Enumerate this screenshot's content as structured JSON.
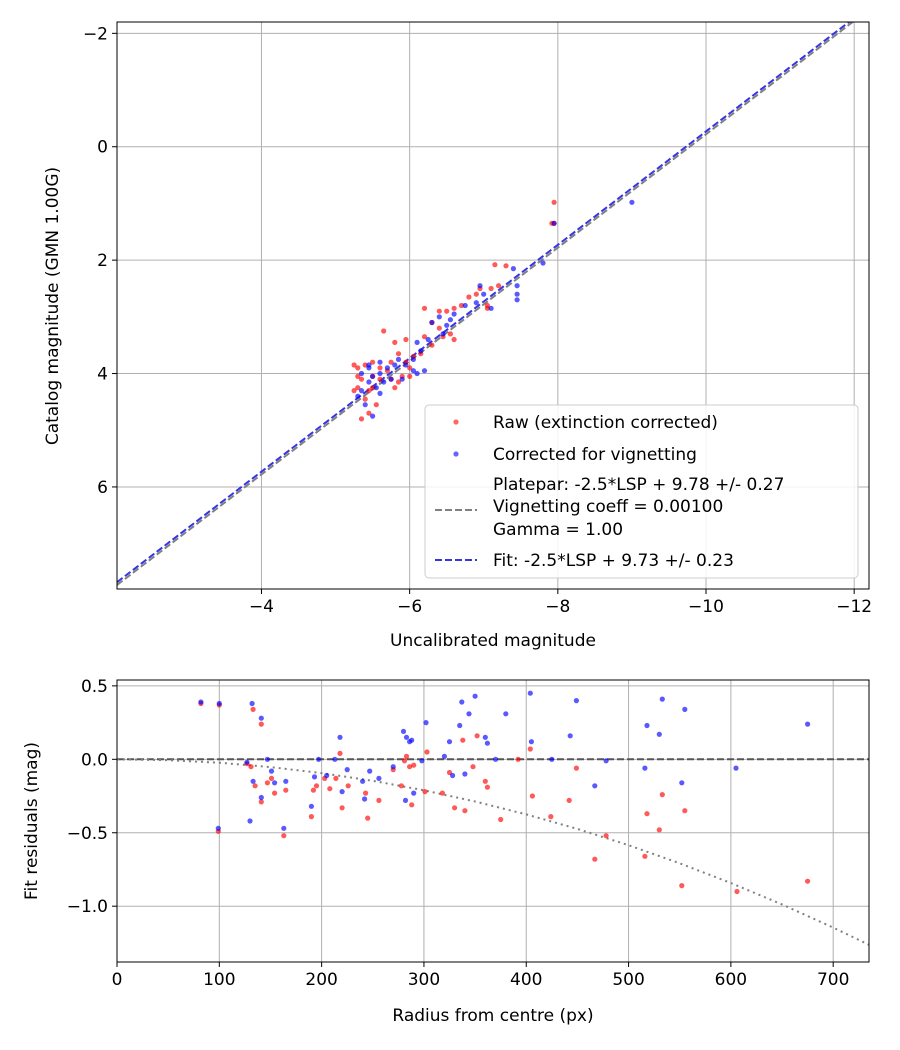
{
  "chart_data": [
    {
      "type": "scatter",
      "xlabel": "Uncalibrated magnitude",
      "ylabel": "Catalog magnitude (GMN 1.00G)",
      "xlim": [
        -2.05,
        -12.2
      ],
      "ylim": [
        7.8,
        -2.2
      ],
      "xticks": [
        -4,
        -6,
        -8,
        -10,
        -12
      ],
      "xtick_labels": [
        "−4",
        "−6",
        "−8",
        "−10",
        "−12"
      ],
      "yticks": [
        -2,
        0,
        2,
        4,
        6
      ],
      "ytick_labels": [
        "−2",
        "0",
        "2",
        "4",
        "6"
      ],
      "grid": true,
      "legend_position": "lower-right",
      "series": [
        {
          "name": "Raw (extinction corrected)",
          "color": "#ff0000",
          "points": [
            [
              -7.95,
              0.98
            ],
            [
              -7.95,
              1.35
            ],
            [
              -7.92,
              1.35
            ],
            [
              -7.3,
              2.1
            ],
            [
              -7.15,
              2.08
            ],
            [
              -7.2,
              2.45
            ],
            [
              -7.1,
              2.5
            ],
            [
              -6.95,
              2.5
            ],
            [
              -7.05,
              2.8
            ],
            [
              -7.05,
              2.85
            ],
            [
              -6.9,
              2.6
            ],
            [
              -6.8,
              2.65
            ],
            [
              -6.7,
              2.8
            ],
            [
              -6.6,
              2.85
            ],
            [
              -6.5,
              2.9
            ],
            [
              -6.4,
              2.9
            ],
            [
              -6.2,
              2.85
            ],
            [
              -6.3,
              3.1
            ],
            [
              -6.4,
              3.2
            ],
            [
              -6.55,
              3.3
            ],
            [
              -6.45,
              3.35
            ],
            [
              -6.6,
              3.4
            ],
            [
              -6.3,
              3.5
            ],
            [
              -6.2,
              3.35
            ],
            [
              -6.15,
              3.65
            ],
            [
              -6.05,
              3.7
            ],
            [
              -5.95,
              3.4
            ],
            [
              -5.85,
              3.65
            ],
            [
              -5.75,
              3.8
            ],
            [
              -5.95,
              3.8
            ],
            [
              -6.0,
              3.9
            ],
            [
              -5.9,
              4.05
            ],
            [
              -5.7,
              3.95
            ],
            [
              -5.6,
              3.9
            ],
            [
              -5.5,
              3.8
            ],
            [
              -5.4,
              3.85
            ],
            [
              -5.3,
              3.9
            ],
            [
              -5.25,
              3.85
            ],
            [
              -5.3,
              4.05
            ],
            [
              -5.35,
              4.1
            ],
            [
              -5.5,
              4.05
            ],
            [
              -5.6,
              4.1
            ],
            [
              -5.75,
              4.1
            ],
            [
              -5.85,
              4.15
            ],
            [
              -5.5,
              4.25
            ],
            [
              -5.45,
              4.3
            ],
            [
              -5.3,
              4.25
            ],
            [
              -5.25,
              4.3
            ],
            [
              -5.4,
              4.45
            ],
            [
              -5.35,
              4.8
            ],
            [
              -5.45,
              4.7
            ],
            [
              -5.65,
              3.25
            ],
            [
              -5.8,
              3.45
            ],
            [
              -5.55,
              4.55
            ],
            [
              -5.8,
              4.25
            ],
            [
              -6.0,
              4.05
            ]
          ]
        },
        {
          "name": "Corrected for vignetting",
          "color": "#0000ff",
          "points": [
            [
              -9.0,
              0.98
            ],
            [
              -7.95,
              1.35
            ],
            [
              -7.8,
              2.05
            ],
            [
              -7.4,
              2.15
            ],
            [
              -7.45,
              2.45
            ],
            [
              -7.45,
              2.6
            ],
            [
              -7.45,
              2.7
            ],
            [
              -7.1,
              2.85
            ],
            [
              -7.0,
              2.6
            ],
            [
              -6.95,
              2.45
            ],
            [
              -6.9,
              2.75
            ],
            [
              -6.75,
              2.8
            ],
            [
              -6.6,
              2.95
            ],
            [
              -6.55,
              3.05
            ],
            [
              -6.4,
              3.0
            ],
            [
              -6.3,
              3.1
            ],
            [
              -6.45,
              3.3
            ],
            [
              -6.25,
              3.4
            ],
            [
              -6.1,
              3.45
            ],
            [
              -6.15,
              3.6
            ],
            [
              -6.05,
              3.75
            ],
            [
              -5.95,
              3.85
            ],
            [
              -5.85,
              3.75
            ],
            [
              -5.8,
              3.85
            ],
            [
              -5.7,
              3.9
            ],
            [
              -5.6,
              4.0
            ],
            [
              -5.5,
              4.05
            ],
            [
              -5.45,
              3.9
            ],
            [
              -5.35,
              4.0
            ],
            [
              -5.45,
              4.15
            ],
            [
              -5.55,
              4.25
            ],
            [
              -5.35,
              4.3
            ],
            [
              -5.3,
              4.4
            ],
            [
              -5.4,
              4.55
            ],
            [
              -5.5,
              4.75
            ],
            [
              -5.6,
              4.35
            ],
            [
              -5.75,
              4.1
            ],
            [
              -5.9,
              4.1
            ],
            [
              -6.05,
              3.95
            ],
            [
              -6.2,
              3.95
            ],
            [
              -6.1,
              4.0
            ],
            [
              -5.6,
              3.8
            ],
            [
              -5.45,
              3.85
            ],
            [
              -5.65,
              4.15
            ],
            [
              -6.5,
              3.15
            ]
          ]
        }
      ],
      "lines": [
        {
          "name": "Platepar: -2.5*LSP + 9.78 +/- 0.27",
          "legend_lines": [
            "Platepar: -2.5*LSP + 9.78 +/- 0.27",
            "Vignetting coeff = 0.00100",
            "Gamma = 1.00"
          ],
          "slope": 1,
          "intercept": 9.78,
          "color": "#808080",
          "style": "dashed"
        },
        {
          "name": "Fit: -2.5*LSP + 9.73 +/- 0.23",
          "slope": 1,
          "intercept": 9.73,
          "color": "#3535e8",
          "style": "dashed"
        }
      ]
    },
    {
      "type": "scatter",
      "xlabel": "Radius from centre (px)",
      "ylabel": "Fit residuals (mag)",
      "xlim": [
        0,
        735
      ],
      "ylim": [
        -1.38,
        0.54
      ],
      "xticks": [
        0,
        100,
        200,
        300,
        400,
        500,
        600,
        700
      ],
      "xtick_labels": [
        "0",
        "100",
        "200",
        "300",
        "400",
        "500",
        "600",
        "700"
      ],
      "yticks": [
        0.5,
        0.0,
        -0.5,
        -1.0
      ],
      "ytick_labels": [
        "0.5",
        "0.0",
        "−0.5",
        "−1.0"
      ],
      "grid": true,
      "series": [
        {
          "name": "Raw",
          "color": "#ff0000",
          "points": [
            [
              82,
              0.38
            ],
            [
              100,
              0.37
            ],
            [
              99,
              -0.49
            ],
            [
              127,
              -0.03
            ],
            [
              131,
              -0.05
            ],
            [
              133,
              0.34
            ],
            [
              135,
              -0.18
            ],
            [
              141,
              0.24
            ],
            [
              141,
              -0.29
            ],
            [
              147,
              -0.16
            ],
            [
              151,
              -0.13
            ],
            [
              154,
              -0.23
            ],
            [
              163,
              -0.52
            ],
            [
              165,
              -0.21
            ],
            [
              190,
              -0.39
            ],
            [
              192,
              -0.21
            ],
            [
              195,
              -0.18
            ],
            [
              203,
              -0.13
            ],
            [
              208,
              -0.2
            ],
            [
              214,
              -0.13
            ],
            [
              218,
              0.04
            ],
            [
              220,
              -0.33
            ],
            [
              226,
              -0.18
            ],
            [
              243,
              -0.23
            ],
            [
              245,
              -0.4
            ],
            [
              256,
              -0.28
            ],
            [
              270,
              -0.07
            ],
            [
              278,
              -0.18
            ],
            [
              281,
              -0.01
            ],
            [
              283,
              0.02
            ],
            [
              286,
              -0.05
            ],
            [
              288,
              -0.31
            ],
            [
              290,
              -0.04
            ],
            [
              301,
              -0.22
            ],
            [
              303,
              0.05
            ],
            [
              318,
              -0.23
            ],
            [
              325,
              -0.09
            ],
            [
              330,
              -0.33
            ],
            [
              338,
              0.13
            ],
            [
              340,
              -0.35
            ],
            [
              348,
              -0.05
            ],
            [
              352,
              0.16
            ],
            [
              360,
              -0.15
            ],
            [
              362,
              -0.19
            ],
            [
              375,
              -0.41
            ],
            [
              392,
              0.0
            ],
            [
              404,
              0.07
            ],
            [
              406,
              -0.25
            ],
            [
              424,
              -0.39
            ],
            [
              442,
              -0.28
            ],
            [
              449,
              -0.06
            ],
            [
              467,
              -0.68
            ],
            [
              478,
              -0.52
            ],
            [
              516,
              -0.66
            ],
            [
              518,
              -0.37
            ],
            [
              530,
              -0.48
            ],
            [
              533,
              -0.24
            ],
            [
              552,
              -0.86
            ],
            [
              555,
              -0.35
            ],
            [
              606,
              -0.9
            ],
            [
              675,
              -0.83
            ]
          ]
        },
        {
          "name": "Corrected",
          "color": "#0000ff",
          "points": [
            [
              82,
              0.39
            ],
            [
              100,
              0.38
            ],
            [
              99,
              -0.47
            ],
            [
              127,
              -0.02
            ],
            [
              132,
              0.38
            ],
            [
              130,
              -0.42
            ],
            [
              133,
              -0.15
            ],
            [
              141,
              0.28
            ],
            [
              141,
              -0.26
            ],
            [
              147,
              0.0
            ],
            [
              151,
              -0.08
            ],
            [
              154,
              -0.16
            ],
            [
              163,
              -0.47
            ],
            [
              165,
              -0.15
            ],
            [
              190,
              -0.32
            ],
            [
              193,
              -0.12
            ],
            [
              197,
              0.0
            ],
            [
              205,
              -0.11
            ],
            [
              213,
              0.0
            ],
            [
              218,
              0.15
            ],
            [
              220,
              -0.22
            ],
            [
              225,
              -0.07
            ],
            [
              240,
              -0.15
            ],
            [
              242,
              -0.27
            ],
            [
              247,
              -0.08
            ],
            [
              256,
              -0.13
            ],
            [
              270,
              -0.05
            ],
            [
              280,
              0.19
            ],
            [
              282,
              -0.28
            ],
            [
              283,
              0.15
            ],
            [
              286,
              0.12
            ],
            [
              288,
              0.13
            ],
            [
              290,
              -0.23
            ],
            [
              298,
              -0.01
            ],
            [
              302,
              0.25
            ],
            [
              320,
              0.02
            ],
            [
              325,
              0.12
            ],
            [
              328,
              -0.11
            ],
            [
              335,
              0.23
            ],
            [
              337,
              0.39
            ],
            [
              340,
              -0.1
            ],
            [
              344,
              0.31
            ],
            [
              350,
              0.43
            ],
            [
              360,
              0.15
            ],
            [
              362,
              0.11
            ],
            [
              370,
              0.0
            ],
            [
              380,
              0.31
            ],
            [
              404,
              0.45
            ],
            [
              405,
              0.12
            ],
            [
              425,
              0.0
            ],
            [
              443,
              0.16
            ],
            [
              449,
              0.4
            ],
            [
              467,
              -0.18
            ],
            [
              478,
              -0.01
            ],
            [
              516,
              -0.06
            ],
            [
              518,
              0.23
            ],
            [
              530,
              0.17
            ],
            [
              533,
              0.41
            ],
            [
              552,
              -0.16
            ],
            [
              555,
              0.34
            ],
            [
              605,
              -0.06
            ],
            [
              675,
              0.24
            ]
          ]
        }
      ],
      "lines": [
        {
          "name": "zero",
          "color": "#555555",
          "style": "dashed",
          "points": [
            [
              0,
              0
            ],
            [
              735,
              0
            ]
          ]
        },
        {
          "name": "vignetting model",
          "color": "#808080",
          "style": "dotted",
          "points": [
            [
              0,
              0
            ],
            [
              50,
              -0.006
            ],
            [
              100,
              -0.023
            ],
            [
              150,
              -0.053
            ],
            [
              200,
              -0.094
            ],
            [
              250,
              -0.146
            ],
            [
              300,
              -0.211
            ],
            [
              350,
              -0.287
            ],
            [
              400,
              -0.375
            ],
            [
              450,
              -0.474
            ],
            [
              500,
              -0.585
            ],
            [
              550,
              -0.708
            ],
            [
              600,
              -0.842
            ],
            [
              650,
              -0.988
            ],
            [
              700,
              -1.146
            ],
            [
              735,
              -1.263
            ]
          ]
        }
      ]
    }
  ]
}
